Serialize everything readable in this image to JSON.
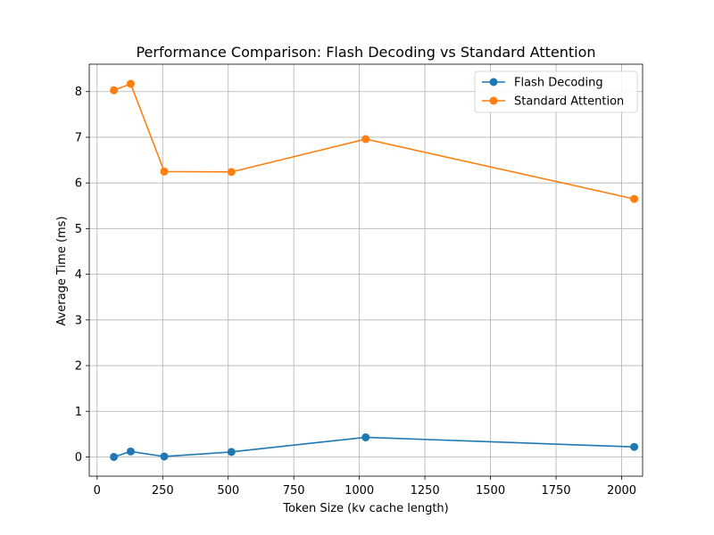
{
  "chart_data": {
    "type": "line",
    "title": "Performance Comparison: Flash Decoding vs Standard Attention",
    "xlabel": "Token Size (kv cache length)",
    "ylabel": "Average Time (ms)",
    "xlim": [
      -30,
      2080
    ],
    "ylim": [
      -0.42,
      8.6
    ],
    "xticks": [
      0,
      250,
      500,
      750,
      1000,
      1250,
      1500,
      1750,
      2000
    ],
    "yticks": [
      0,
      1,
      2,
      3,
      4,
      5,
      6,
      7,
      8
    ],
    "grid": true,
    "legend_position": "top-right",
    "x": [
      64,
      128,
      256,
      512,
      1024,
      2048
    ],
    "series": [
      {
        "name": "Flash Decoding",
        "color": "#1f77b4",
        "values": [
          0.0,
          0.12,
          0.01,
          0.11,
          0.43,
          0.22
        ]
      },
      {
        "name": "Standard Attention",
        "color": "#ff7f0e",
        "values": [
          8.03,
          8.17,
          6.25,
          6.24,
          6.96,
          5.65
        ]
      }
    ]
  }
}
